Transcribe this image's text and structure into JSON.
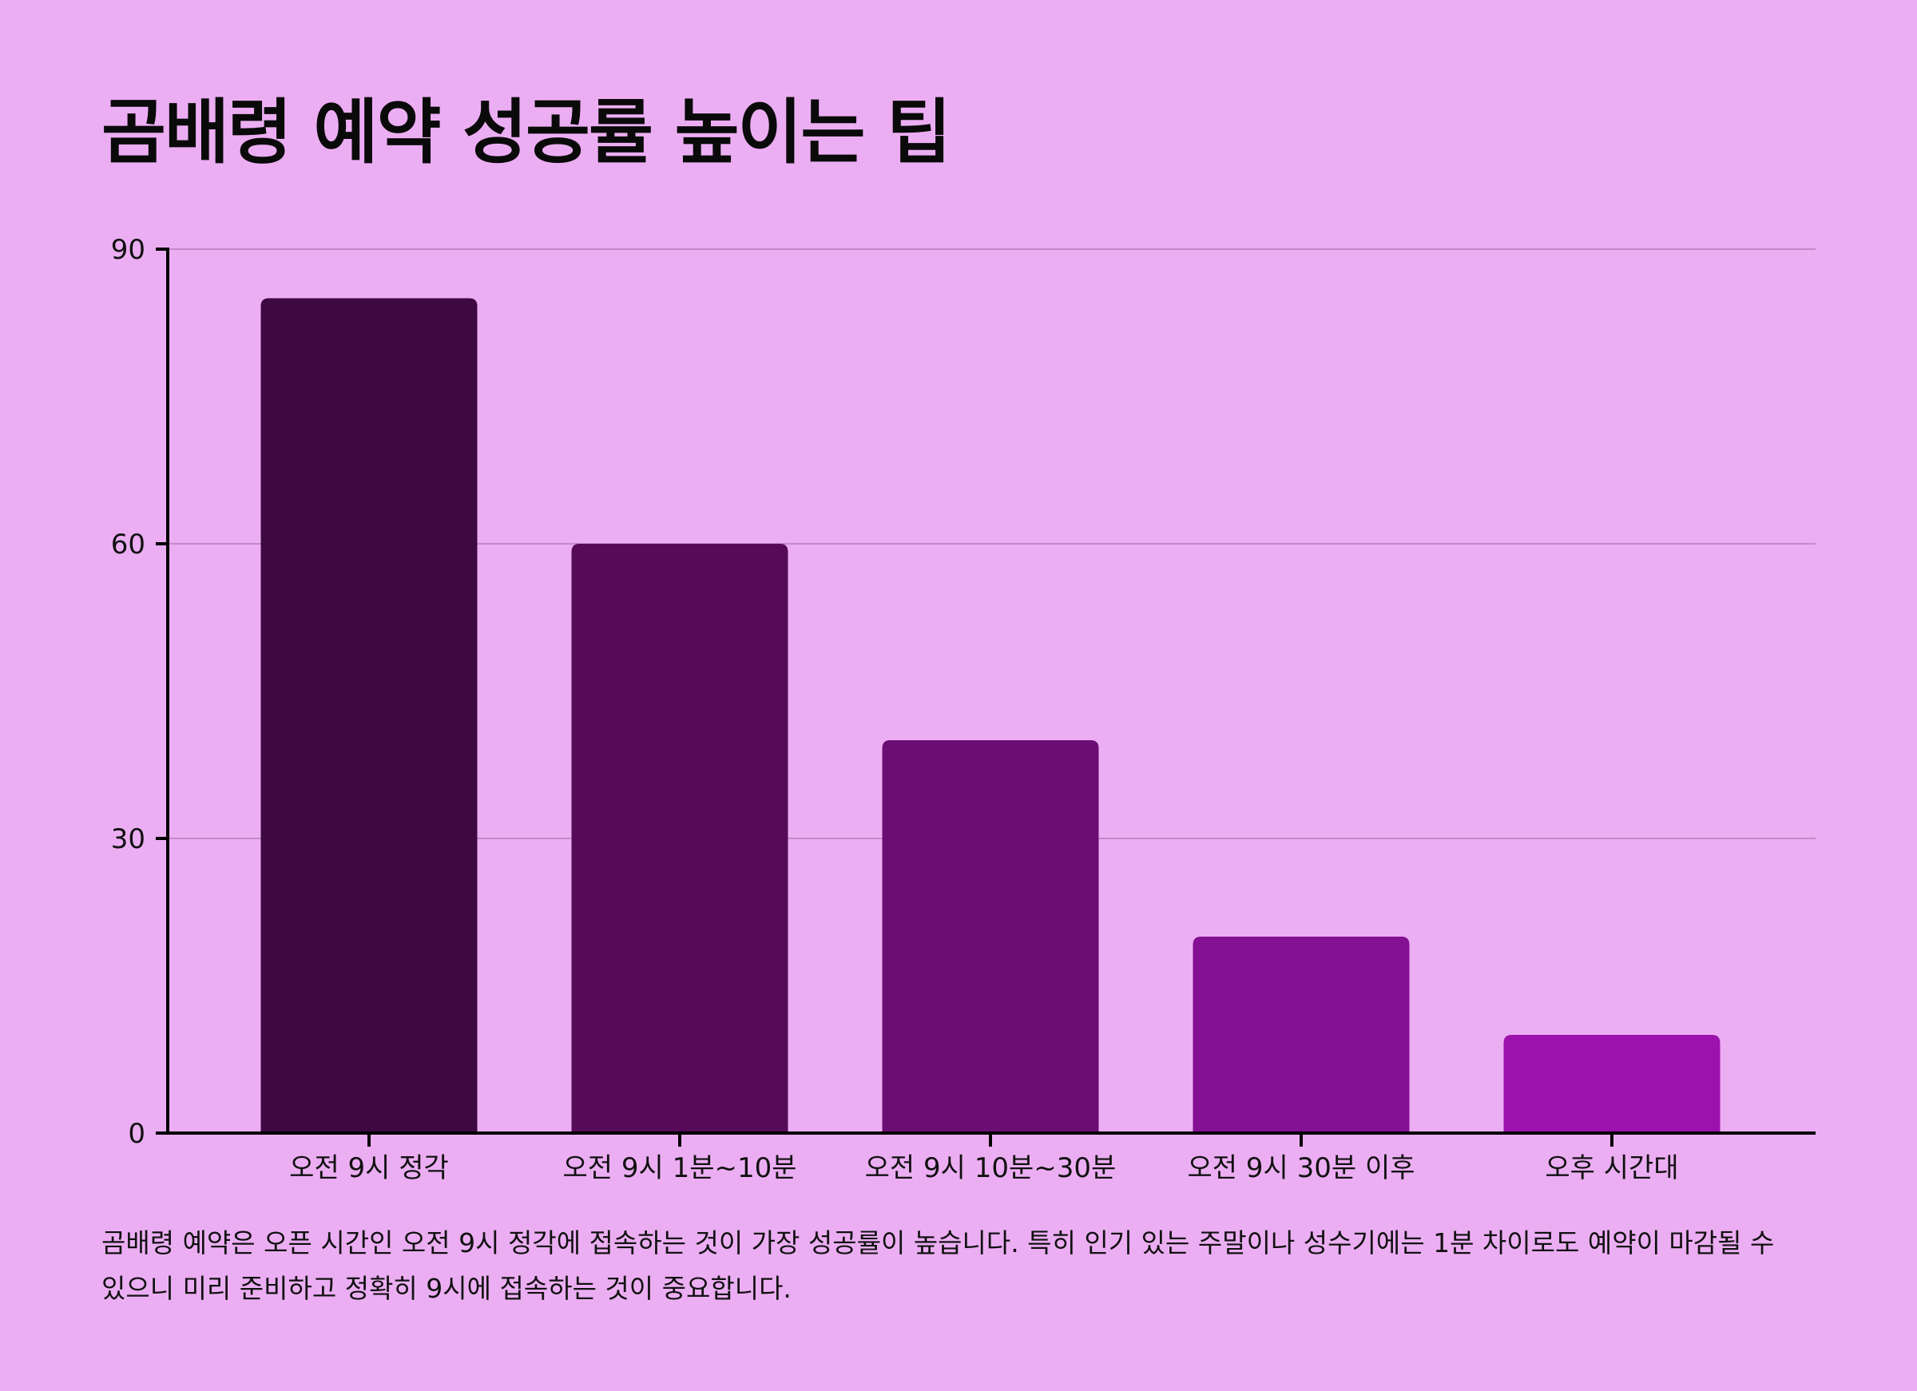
{
  "chart_data": {
    "type": "bar",
    "title": "곰배령 예약 성공률 높이는 팁",
    "description": "곰배령 예약은 오픈 시간인 오전 9시 정각에 접속하는 것이 가장 성공률이 높습니다. 특히 인기 있는 주말이나 성수기에는 1분 차이로도 예약이 마감될 수 있으니 미리 준비하고 정확히 9시에 접속하는 것이 중요합니다.",
    "categories": [
      "오전 9시 정각",
      "오전 9시 1분~10분",
      "오전 9시 10분~30분",
      "오전 9시 30분 이후",
      "오후 시간대"
    ],
    "values": [
      85,
      60,
      40,
      20,
      10
    ],
    "colors": [
      "#3d0940",
      "#560b59",
      "#6b0e74",
      "#841093",
      "#9c12ad"
    ],
    "ylim": [
      0,
      90
    ],
    "yticks": [
      0,
      30,
      60,
      90
    ],
    "grid": true
  }
}
